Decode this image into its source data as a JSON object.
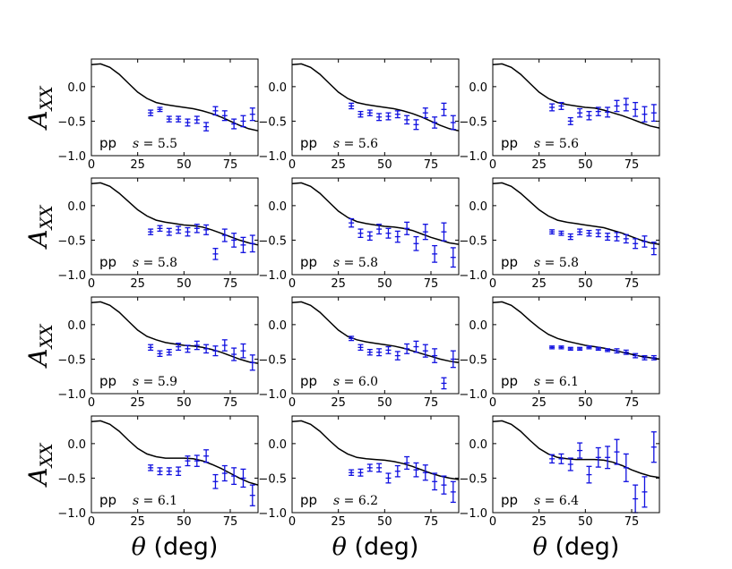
{
  "chart_data": {
    "type": "scatter",
    "layout": "4 rows x 3 columns small multiples",
    "series_style": {
      "data_color": "#1010e0",
      "theory_color": "#000000"
    },
    "x_axis": {
      "label_symbol": "θ",
      "label_unit": "(deg)",
      "xlim": [
        0,
        90
      ],
      "ticks": [
        0,
        25,
        50,
        75
      ]
    },
    "y_axis": {
      "label_main": "A",
      "label_sub": "XX",
      "ylim": [
        -1.0,
        0.4
      ],
      "ticks": [
        -1.0,
        -0.5,
        0.0
      ],
      "tick_labels": [
        "−1.0",
        "−0.5",
        "0.0"
      ]
    },
    "panels": [
      {
        "process": "pp",
        "s_label": "s",
        "s_value": "5.5",
        "data": {
          "x": [
            32,
            37,
            42,
            47,
            52,
            57,
            62,
            67,
            72,
            77,
            82,
            87
          ],
          "y": [
            -0.38,
            -0.33,
            -0.47,
            -0.47,
            -0.52,
            -0.48,
            -0.58,
            -0.35,
            -0.42,
            -0.54,
            -0.5,
            -0.4
          ],
          "err": [
            0.04,
            0.03,
            0.04,
            0.04,
            0.05,
            0.05,
            0.06,
            0.06,
            0.07,
            0.07,
            0.08,
            0.09
          ]
        },
        "theory": {
          "x": [
            0,
            5,
            10,
            15,
            20,
            25,
            30,
            35,
            40,
            45,
            50,
            55,
            60,
            65,
            70,
            75,
            80,
            85,
            90
          ],
          "y": [
            0.32,
            0.33,
            0.28,
            0.18,
            0.05,
            -0.08,
            -0.17,
            -0.23,
            -0.26,
            -0.28,
            -0.3,
            -0.32,
            -0.35,
            -0.39,
            -0.44,
            -0.5,
            -0.56,
            -0.61,
            -0.64
          ]
        }
      },
      {
        "process": "pp",
        "s_label": "s",
        "s_value": "5.6",
        "data": {
          "x": [
            32,
            37,
            42,
            47,
            52,
            57,
            62,
            67,
            72,
            77,
            82,
            87
          ],
          "y": [
            -0.28,
            -0.4,
            -0.38,
            -0.44,
            -0.43,
            -0.4,
            -0.48,
            -0.55,
            -0.38,
            -0.52,
            -0.33,
            -0.52
          ],
          "err": [
            0.04,
            0.04,
            0.04,
            0.05,
            0.05,
            0.05,
            0.06,
            0.07,
            0.07,
            0.08,
            0.09,
            0.1
          ]
        },
        "theory": {
          "x": [
            0,
            5,
            10,
            15,
            20,
            25,
            30,
            35,
            40,
            45,
            50,
            55,
            60,
            65,
            70,
            75,
            80,
            85,
            90
          ],
          "y": [
            0.32,
            0.33,
            0.28,
            0.18,
            0.05,
            -0.08,
            -0.17,
            -0.23,
            -0.26,
            -0.28,
            -0.3,
            -0.32,
            -0.35,
            -0.39,
            -0.44,
            -0.5,
            -0.56,
            -0.61,
            -0.64
          ]
        }
      },
      {
        "process": "pp",
        "s_label": "s",
        "s_value": "5.6",
        "data": {
          "x": [
            32,
            37,
            42,
            47,
            52,
            57,
            62,
            67,
            72,
            77,
            82,
            87
          ],
          "y": [
            -0.3,
            -0.28,
            -0.5,
            -0.38,
            -0.42,
            -0.36,
            -0.37,
            -0.28,
            -0.26,
            -0.33,
            -0.4,
            -0.38
          ],
          "err": [
            0.05,
            0.05,
            0.05,
            0.06,
            0.06,
            0.06,
            0.07,
            0.08,
            0.09,
            0.1,
            0.11,
            0.12
          ]
        },
        "theory": {
          "x": [
            0,
            5,
            10,
            15,
            20,
            25,
            30,
            35,
            40,
            45,
            50,
            55,
            60,
            65,
            70,
            75,
            80,
            85,
            90
          ],
          "y": [
            0.32,
            0.33,
            0.28,
            0.18,
            0.05,
            -0.08,
            -0.17,
            -0.23,
            -0.26,
            -0.28,
            -0.3,
            -0.31,
            -0.34,
            -0.38,
            -0.42,
            -0.47,
            -0.52,
            -0.57,
            -0.6
          ]
        }
      },
      {
        "process": "pp",
        "s_label": "s",
        "s_value": "5.8",
        "data": {
          "x": [
            32,
            37,
            42,
            47,
            52,
            57,
            62,
            67,
            72,
            77,
            82,
            87
          ],
          "y": [
            -0.38,
            -0.33,
            -0.38,
            -0.35,
            -0.38,
            -0.33,
            -0.35,
            -0.7,
            -0.43,
            -0.5,
            -0.57,
            -0.55
          ],
          "err": [
            0.04,
            0.04,
            0.05,
            0.05,
            0.06,
            0.06,
            0.07,
            0.08,
            0.09,
            0.1,
            0.11,
            0.12
          ]
        },
        "theory": {
          "x": [
            0,
            5,
            10,
            15,
            20,
            25,
            30,
            35,
            40,
            45,
            50,
            55,
            60,
            65,
            70,
            75,
            80,
            85,
            90
          ],
          "y": [
            0.32,
            0.33,
            0.28,
            0.18,
            0.06,
            -0.06,
            -0.15,
            -0.21,
            -0.24,
            -0.26,
            -0.28,
            -0.29,
            -0.31,
            -0.35,
            -0.4,
            -0.45,
            -0.5,
            -0.54,
            -0.57
          ]
        }
      },
      {
        "process": "pp",
        "s_label": "s",
        "s_value": "5.8",
        "data": {
          "x": [
            32,
            37,
            42,
            47,
            52,
            57,
            62,
            67,
            72,
            77,
            82,
            87
          ],
          "y": [
            -0.25,
            -0.4,
            -0.44,
            -0.34,
            -0.4,
            -0.45,
            -0.33,
            -0.55,
            -0.38,
            -0.7,
            -0.38,
            -0.75
          ],
          "err": [
            0.06,
            0.06,
            0.06,
            0.07,
            0.07,
            0.08,
            0.09,
            0.1,
            0.11,
            0.12,
            0.13,
            0.14
          ]
        },
        "theory": {
          "x": [
            0,
            5,
            10,
            15,
            20,
            25,
            30,
            35,
            40,
            45,
            50,
            55,
            60,
            65,
            70,
            75,
            80,
            85,
            90
          ],
          "y": [
            0.32,
            0.33,
            0.28,
            0.18,
            0.05,
            -0.08,
            -0.17,
            -0.23,
            -0.26,
            -0.28,
            -0.3,
            -0.31,
            -0.33,
            -0.36,
            -0.41,
            -0.46,
            -0.5,
            -0.54,
            -0.56
          ]
        }
      },
      {
        "process": "pp",
        "s_label": "s",
        "s_value": "5.8",
        "data": {
          "x": [
            32,
            37,
            42,
            47,
            52,
            57,
            62,
            67,
            72,
            77,
            82,
            87
          ],
          "y": [
            -0.38,
            -0.4,
            -0.45,
            -0.38,
            -0.4,
            -0.4,
            -0.45,
            -0.45,
            -0.48,
            -0.55,
            -0.52,
            -0.62
          ],
          "err": [
            0.03,
            0.03,
            0.04,
            0.04,
            0.04,
            0.05,
            0.05,
            0.06,
            0.06,
            0.07,
            0.08,
            0.09
          ]
        },
        "theory": {
          "x": [
            0,
            5,
            10,
            15,
            20,
            25,
            30,
            35,
            40,
            45,
            50,
            55,
            60,
            65,
            70,
            75,
            80,
            85,
            90
          ],
          "y": [
            0.32,
            0.33,
            0.28,
            0.18,
            0.06,
            -0.06,
            -0.15,
            -0.21,
            -0.24,
            -0.26,
            -0.28,
            -0.3,
            -0.32,
            -0.36,
            -0.4,
            -0.45,
            -0.5,
            -0.54,
            -0.56
          ]
        }
      },
      {
        "process": "pp",
        "s_label": "s",
        "s_value": "5.9",
        "data": {
          "x": [
            32,
            37,
            42,
            47,
            52,
            57,
            62,
            67,
            72,
            77,
            82,
            87
          ],
          "y": [
            -0.33,
            -0.42,
            -0.4,
            -0.32,
            -0.35,
            -0.3,
            -0.35,
            -0.38,
            -0.3,
            -0.43,
            -0.38,
            -0.55
          ],
          "err": [
            0.04,
            0.04,
            0.04,
            0.05,
            0.05,
            0.06,
            0.06,
            0.07,
            0.08,
            0.09,
            0.1,
            0.11
          ]
        },
        "theory": {
          "x": [
            0,
            5,
            10,
            15,
            20,
            25,
            30,
            35,
            40,
            45,
            50,
            55,
            60,
            65,
            70,
            75,
            80,
            85,
            90
          ],
          "y": [
            0.32,
            0.33,
            0.28,
            0.18,
            0.05,
            -0.08,
            -0.17,
            -0.22,
            -0.26,
            -0.28,
            -0.3,
            -0.31,
            -0.33,
            -0.36,
            -0.4,
            -0.45,
            -0.5,
            -0.54,
            -0.56
          ]
        }
      },
      {
        "process": "pp",
        "s_label": "s",
        "s_value": "6.0",
        "data": {
          "x": [
            32,
            37,
            42,
            47,
            52,
            57,
            62,
            67,
            72,
            77,
            82,
            87
          ],
          "y": [
            -0.2,
            -0.33,
            -0.4,
            -0.4,
            -0.37,
            -0.45,
            -0.35,
            -0.32,
            -0.38,
            -0.45,
            -0.85,
            -0.5
          ],
          "err": [
            0.03,
            0.04,
            0.04,
            0.05,
            0.05,
            0.06,
            0.07,
            0.08,
            0.09,
            0.1,
            0.08,
            0.12
          ]
        },
        "theory": {
          "x": [
            0,
            5,
            10,
            15,
            20,
            25,
            30,
            35,
            40,
            45,
            50,
            55,
            60,
            65,
            70,
            75,
            80,
            85,
            90
          ],
          "y": [
            0.32,
            0.33,
            0.28,
            0.18,
            0.05,
            -0.08,
            -0.17,
            -0.22,
            -0.25,
            -0.27,
            -0.29,
            -0.31,
            -0.34,
            -0.38,
            -0.42,
            -0.46,
            -0.5,
            -0.53,
            -0.55
          ]
        }
      },
      {
        "process": "pp",
        "s_label": "s",
        "s_value": "6.1",
        "data": {
          "x": [
            32,
            37,
            42,
            47,
            52,
            57,
            62,
            67,
            72,
            77,
            82,
            87
          ],
          "y": [
            -0.33,
            -0.33,
            -0.35,
            -0.35,
            -0.33,
            -0.35,
            -0.37,
            -0.38,
            -0.4,
            -0.45,
            -0.48,
            -0.48
          ],
          "err": [
            0.02,
            0.02,
            0.02,
            0.02,
            0.02,
            0.02,
            0.02,
            0.03,
            0.03,
            0.03,
            0.03,
            0.03
          ]
        },
        "theory": {
          "x": [
            0,
            5,
            10,
            15,
            20,
            25,
            30,
            35,
            40,
            45,
            50,
            55,
            60,
            65,
            70,
            75,
            80,
            85,
            90
          ],
          "y": [
            0.32,
            0.33,
            0.28,
            0.18,
            0.06,
            -0.05,
            -0.14,
            -0.2,
            -0.24,
            -0.27,
            -0.3,
            -0.32,
            -0.34,
            -0.37,
            -0.4,
            -0.43,
            -0.46,
            -0.48,
            -0.5
          ]
        }
      },
      {
        "process": "pp",
        "s_label": "s",
        "s_value": "6.1",
        "data": {
          "x": [
            32,
            37,
            42,
            47,
            52,
            57,
            62,
            67,
            72,
            77,
            82,
            87
          ],
          "y": [
            -0.35,
            -0.4,
            -0.4,
            -0.4,
            -0.25,
            -0.25,
            -0.18,
            -0.55,
            -0.43,
            -0.47,
            -0.5,
            -0.75
          ],
          "err": [
            0.04,
            0.05,
            0.05,
            0.06,
            0.07,
            0.08,
            0.09,
            0.1,
            0.11,
            0.12,
            0.13,
            0.15
          ]
        },
        "theory": {
          "x": [
            0,
            5,
            10,
            15,
            20,
            25,
            30,
            35,
            40,
            45,
            50,
            55,
            60,
            65,
            70,
            75,
            80,
            85,
            90
          ],
          "y": [
            0.32,
            0.33,
            0.28,
            0.18,
            0.05,
            -0.07,
            -0.15,
            -0.19,
            -0.21,
            -0.21,
            -0.21,
            -0.22,
            -0.25,
            -0.3,
            -0.36,
            -0.43,
            -0.5,
            -0.56,
            -0.6
          ]
        }
      },
      {
        "process": "pp",
        "s_label": "s",
        "s_value": "6.2",
        "data": {
          "x": [
            32,
            37,
            42,
            47,
            52,
            57,
            62,
            67,
            72,
            77,
            82,
            87
          ],
          "y": [
            -0.42,
            -0.42,
            -0.35,
            -0.35,
            -0.5,
            -0.4,
            -0.28,
            -0.38,
            -0.42,
            -0.55,
            -0.6,
            -0.7
          ],
          "err": [
            0.04,
            0.05,
            0.05,
            0.06,
            0.07,
            0.08,
            0.09,
            0.1,
            0.11,
            0.12,
            0.13,
            0.15
          ]
        },
        "theory": {
          "x": [
            0,
            5,
            10,
            15,
            20,
            25,
            30,
            35,
            40,
            45,
            50,
            55,
            60,
            65,
            70,
            75,
            80,
            85,
            90
          ],
          "y": [
            0.32,
            0.33,
            0.28,
            0.18,
            0.05,
            -0.07,
            -0.15,
            -0.2,
            -0.22,
            -0.23,
            -0.24,
            -0.26,
            -0.29,
            -0.33,
            -0.38,
            -0.43,
            -0.47,
            -0.5,
            -0.52
          ]
        }
      },
      {
        "process": "pp",
        "s_label": "s",
        "s_value": "6.4",
        "data": {
          "x": [
            32,
            37,
            42,
            47,
            52,
            57,
            62,
            67,
            72,
            77,
            82,
            87
          ],
          "y": [
            -0.22,
            -0.22,
            -0.3,
            -0.1,
            -0.45,
            -0.2,
            -0.2,
            -0.12,
            -0.35,
            -0.8,
            -0.7,
            -0.05
          ],
          "err": [
            0.06,
            0.07,
            0.09,
            0.11,
            0.12,
            0.14,
            0.16,
            0.18,
            0.2,
            0.2,
            0.22,
            0.22
          ]
        },
        "theory": {
          "x": [
            0,
            5,
            10,
            15,
            20,
            25,
            30,
            35,
            40,
            45,
            50,
            55,
            60,
            65,
            70,
            75,
            80,
            85,
            90
          ],
          "y": [
            0.32,
            0.33,
            0.28,
            0.18,
            0.05,
            -0.07,
            -0.15,
            -0.2,
            -0.22,
            -0.23,
            -0.23,
            -0.23,
            -0.24,
            -0.27,
            -0.32,
            -0.38,
            -0.43,
            -0.47,
            -0.49
          ]
        }
      }
    ]
  }
}
